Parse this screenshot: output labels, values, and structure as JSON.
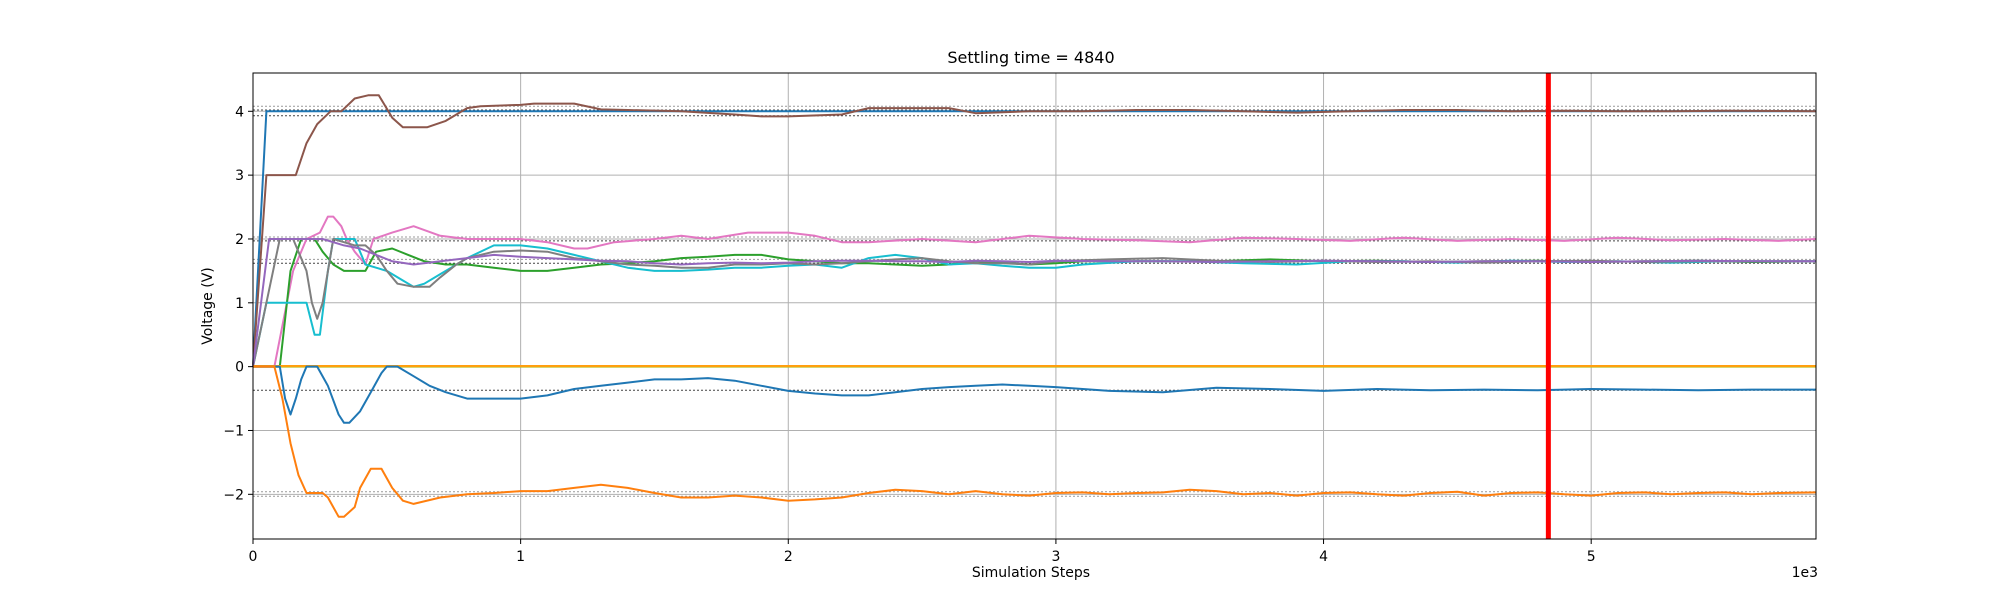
{
  "chart_data": {
    "type": "line",
    "title": "Settling time = 4840",
    "xlabel": "Simulation Steps",
    "ylabel": "Voltage (V)",
    "x_offset_label": "1e3",
    "xlim": [
      0,
      5840
    ],
    "ylim": [
      -2.7,
      4.6
    ],
    "grid": true,
    "legend": "none",
    "x_ticks": [
      {
        "value": 0,
        "label": "0"
      },
      {
        "value": 1000,
        "label": "1"
      },
      {
        "value": 2000,
        "label": "2"
      },
      {
        "value": 3000,
        "label": "3"
      },
      {
        "value": 4000,
        "label": "4"
      },
      {
        "value": 5000,
        "label": "5"
      }
    ],
    "y_ticks": [
      {
        "value": -2,
        "label": "−2"
      },
      {
        "value": -1,
        "label": "−1"
      },
      {
        "value": 0,
        "label": "0"
      },
      {
        "value": 1,
        "label": "1"
      },
      {
        "value": 2,
        "label": "2"
      },
      {
        "value": 3,
        "label": "3"
      },
      {
        "value": 4,
        "label": "4"
      }
    ],
    "settling_marker": {
      "x": 4840,
      "color": "#ff0000"
    },
    "reference_lines": [
      {
        "y": 4.08,
        "color": "#999999"
      },
      {
        "y": 4.02,
        "color": "#444444"
      },
      {
        "y": 3.93,
        "color": "#444444"
      },
      {
        "y": 2.03,
        "color": "#999999"
      },
      {
        "y": 1.97,
        "color": "#444444"
      },
      {
        "y": 1.68,
        "color": "#999999"
      },
      {
        "y": 1.62,
        "color": "#444444"
      },
      {
        "y": -0.37,
        "color": "#444444"
      },
      {
        "y": -1.96,
        "color": "#999999"
      },
      {
        "y": -2.03,
        "color": "#999999"
      }
    ],
    "series": [
      {
        "color": "#1f77b4",
        "x": [
          0,
          50,
          60,
          5840
        ],
        "y": [
          0,
          4.0,
          4.0,
          4.0
        ]
      },
      {
        "color": "#8c564b",
        "x": [
          0,
          50,
          160,
          200,
          240,
          290,
          330,
          380,
          430,
          470,
          520,
          560,
          650,
          720,
          800,
          850,
          1000,
          1050,
          1200,
          1300,
          1400,
          1600,
          1800,
          1900,
          2000,
          2200,
          2300,
          2400,
          2600,
          2700,
          2900,
          3100,
          3300,
          3500,
          3700,
          3900,
          4100,
          4300,
          4500,
          4700,
          4900,
          5100,
          5300,
          5500,
          5840
        ],
        "y": [
          0,
          3.0,
          3.0,
          3.5,
          3.8,
          4.0,
          4.0,
          4.2,
          4.25,
          4.25,
          3.9,
          3.75,
          3.75,
          3.85,
          4.05,
          4.08,
          4.1,
          4.12,
          4.12,
          4.03,
          4.02,
          4.0,
          3.95,
          3.92,
          3.92,
          3.95,
          4.05,
          4.05,
          4.05,
          3.97,
          4.0,
          4.0,
          4.02,
          4.02,
          4.0,
          3.98,
          4.0,
          4.02,
          4.02,
          4.0,
          4.01,
          4.0,
          4.0,
          4.01,
          4.0
        ]
      },
      {
        "color": "#e377c2",
        "x": [
          0,
          80,
          150,
          200,
          250,
          280,
          300,
          330,
          350,
          380,
          420,
          450,
          520,
          600,
          700,
          800,
          900,
          1000,
          1100,
          1200,
          1250,
          1350,
          1500,
          1600,
          1700,
          1850,
          2000,
          2100,
          2200,
          2300,
          2500,
          2700,
          2800,
          2900,
          3100,
          3300,
          3500,
          3700,
          3900,
          4100,
          4300,
          4500,
          4700,
          4900,
          5100,
          5300,
          5500,
          5700,
          5840
        ],
        "y": [
          0,
          0,
          1.5,
          2.0,
          2.1,
          2.35,
          2.35,
          2.2,
          2.0,
          1.8,
          1.6,
          2.0,
          2.1,
          2.2,
          2.05,
          2.0,
          2.0,
          2.0,
          1.95,
          1.85,
          1.85,
          1.95,
          2.0,
          2.05,
          2.0,
          2.1,
          2.1,
          2.05,
          1.95,
          1.95,
          2.0,
          1.95,
          2.0,
          2.05,
          2.0,
          1.98,
          1.95,
          2.02,
          2.0,
          1.97,
          2.02,
          1.97,
          2.0,
          1.97,
          2.02,
          1.98,
          2.0,
          1.97,
          2.0
        ]
      },
      {
        "color": "#2ca02c",
        "x": [
          0,
          100,
          140,
          180,
          230,
          260,
          300,
          340,
          380,
          420,
          460,
          520,
          580,
          640,
          720,
          800,
          900,
          1000,
          1100,
          1200,
          1300,
          1400,
          1500,
          1600,
          1700,
          1800,
          1900,
          2000,
          2100,
          2200,
          2300,
          2400,
          2500,
          2600,
          2700,
          2800,
          2900,
          3000,
          3100,
          3200,
          3400,
          3600,
          3800,
          4000,
          4200,
          4400,
          4600,
          4800,
          5000,
          5200,
          5400,
          5600,
          5840
        ],
        "y": [
          0,
          0,
          1.5,
          2.0,
          2.0,
          1.8,
          1.6,
          1.5,
          1.5,
          1.5,
          1.8,
          1.85,
          1.75,
          1.65,
          1.6,
          1.6,
          1.55,
          1.5,
          1.5,
          1.55,
          1.6,
          1.62,
          1.65,
          1.7,
          1.72,
          1.75,
          1.75,
          1.68,
          1.65,
          1.62,
          1.62,
          1.6,
          1.58,
          1.6,
          1.65,
          1.63,
          1.6,
          1.62,
          1.65,
          1.65,
          1.65,
          1.65,
          1.68,
          1.65,
          1.66,
          1.64,
          1.65,
          1.66,
          1.64,
          1.65,
          1.66,
          1.64,
          1.65
        ]
      },
      {
        "color": "#17becf",
        "x": [
          0,
          50,
          100,
          200,
          230,
          250,
          280,
          300,
          340,
          380,
          420,
          460,
          500,
          560,
          600,
          640,
          700,
          740,
          800,
          900,
          1000,
          1100,
          1200,
          1300,
          1400,
          1500,
          1600,
          1700,
          1800,
          1900,
          2000,
          2100,
          2200,
          2300,
          2400,
          2500,
          2600,
          2700,
          2800,
          2900,
          3000,
          3100,
          3300,
          3500,
          3700,
          3900,
          4100,
          4300,
          4500,
          4700,
          4900,
          5100,
          5300,
          5500,
          5840
        ],
        "y": [
          0,
          1.0,
          1.0,
          1.0,
          0.5,
          0.5,
          1.5,
          2.0,
          2.0,
          2.0,
          1.6,
          1.55,
          1.5,
          1.35,
          1.25,
          1.3,
          1.45,
          1.55,
          1.7,
          1.9,
          1.9,
          1.85,
          1.75,
          1.65,
          1.55,
          1.5,
          1.5,
          1.52,
          1.55,
          1.55,
          1.58,
          1.6,
          1.55,
          1.7,
          1.75,
          1.7,
          1.6,
          1.62,
          1.58,
          1.55,
          1.55,
          1.6,
          1.65,
          1.65,
          1.62,
          1.6,
          1.65,
          1.65,
          1.63,
          1.66,
          1.64,
          1.65,
          1.63,
          1.65,
          1.65
        ]
      },
      {
        "color": "#7f7f7f",
        "x": [
          0,
          50,
          100,
          150,
          200,
          220,
          240,
          260,
          300,
          340,
          380,
          420,
          460,
          500,
          540,
          600,
          660,
          700,
          760,
          800,
          900,
          1000,
          1100,
          1200,
          1300,
          1400,
          1500,
          1600,
          1700,
          1800,
          1900,
          2000,
          2100,
          2200,
          2300,
          2400,
          2500,
          2600,
          2700,
          2800,
          2900,
          3000,
          3200,
          3400,
          3600,
          3800,
          4000,
          4200,
          4400,
          4600,
          4800,
          5000,
          5200,
          5400,
          5840
        ],
        "y": [
          0,
          1.0,
          2.0,
          2.0,
          1.5,
          1.0,
          0.75,
          1.0,
          2.0,
          1.95,
          1.9,
          1.9,
          1.75,
          1.5,
          1.3,
          1.25,
          1.25,
          1.4,
          1.6,
          1.7,
          1.8,
          1.82,
          1.8,
          1.7,
          1.65,
          1.6,
          1.58,
          1.55,
          1.55,
          1.6,
          1.6,
          1.62,
          1.6,
          1.62,
          1.65,
          1.68,
          1.7,
          1.65,
          1.62,
          1.62,
          1.6,
          1.65,
          1.68,
          1.7,
          1.66,
          1.64,
          1.66,
          1.64,
          1.65,
          1.63,
          1.65,
          1.66,
          1.64,
          1.65,
          1.65
        ]
      },
      {
        "color": "#9467bd",
        "x": [
          0,
          60,
          120,
          200,
          260,
          300,
          340,
          400,
          460,
          520,
          600,
          700,
          800,
          900,
          1000,
          1100,
          1200,
          1300,
          1400,
          1500,
          1600,
          1700,
          1800,
          1900,
          2000,
          2100,
          2200,
          2300,
          2400,
          2500,
          2600,
          2700,
          2800,
          2900,
          3000,
          3200,
          3400,
          3600,
          3800,
          4000,
          4200,
          4400,
          4600,
          4800,
          5000,
          5200,
          5400,
          5600,
          5840
        ],
        "y": [
          0,
          2.0,
          2.0,
          2.0,
          2.0,
          1.95,
          1.9,
          1.85,
          1.75,
          1.65,
          1.6,
          1.65,
          1.7,
          1.75,
          1.72,
          1.7,
          1.68,
          1.66,
          1.65,
          1.62,
          1.6,
          1.62,
          1.63,
          1.62,
          1.63,
          1.65,
          1.66,
          1.66,
          1.65,
          1.65,
          1.64,
          1.66,
          1.65,
          1.64,
          1.66,
          1.65,
          1.65,
          1.64,
          1.65,
          1.66,
          1.65,
          1.64,
          1.65,
          1.65,
          1.64,
          1.65,
          1.66,
          1.65,
          1.65
        ]
      },
      {
        "color": "#bcbd22",
        "x": [
          0,
          5840
        ],
        "y": [
          0,
          0
        ]
      },
      {
        "color": "#ff9f0e",
        "x": [
          0,
          5840
        ],
        "y": [
          0.01,
          0.01
        ]
      },
      {
        "color": "#1f77b4",
        "x": [
          0,
          50,
          100,
          120,
          140,
          160,
          180,
          200,
          240,
          280,
          320,
          340,
          360,
          400,
          440,
          480,
          500,
          540,
          600,
          660,
          720,
          800,
          900,
          1000,
          1100,
          1200,
          1300,
          1400,
          1500,
          1600,
          1700,
          1800,
          1900,
          2000,
          2100,
          2200,
          2300,
          2400,
          2500,
          2600,
          2700,
          2800,
          2900,
          3000,
          3100,
          3200,
          3400,
          3600,
          3800,
          4000,
          4200,
          4400,
          4600,
          4800,
          5000,
          5200,
          5400,
          5600,
          5840
        ],
        "y": [
          0,
          0,
          0,
          -0.5,
          -0.75,
          -0.5,
          -0.2,
          0,
          0,
          -0.3,
          -0.75,
          -0.88,
          -0.88,
          -0.7,
          -0.4,
          -0.1,
          0,
          0,
          -0.15,
          -0.3,
          -0.4,
          -0.5,
          -0.5,
          -0.5,
          -0.45,
          -0.35,
          -0.3,
          -0.25,
          -0.2,
          -0.2,
          -0.18,
          -0.22,
          -0.3,
          -0.38,
          -0.42,
          -0.45,
          -0.45,
          -0.4,
          -0.35,
          -0.32,
          -0.3,
          -0.28,
          -0.3,
          -0.32,
          -0.35,
          -0.38,
          -0.4,
          -0.33,
          -0.35,
          -0.38,
          -0.35,
          -0.37,
          -0.36,
          -0.37,
          -0.35,
          -0.36,
          -0.37,
          -0.36,
          -0.36
        ]
      },
      {
        "color": "#ff7f0e",
        "x": [
          0,
          80,
          110,
          140,
          170,
          200,
          260,
          280,
          320,
          340,
          380,
          400,
          440,
          480,
          520,
          560,
          600,
          700,
          800,
          900,
          1000,
          1100,
          1200,
          1300,
          1400,
          1500,
          1600,
          1700,
          1800,
          1900,
          2000,
          2100,
          2200,
          2300,
          2400,
          2500,
          2600,
          2700,
          2800,
          2900,
          3000,
          3100,
          3200,
          3300,
          3400,
          3500,
          3600,
          3700,
          3800,
          3900,
          4000,
          4100,
          4200,
          4300,
          4400,
          4500,
          4600,
          4700,
          4800,
          4900,
          5000,
          5100,
          5200,
          5300,
          5400,
          5500,
          5600,
          5700,
          5840
        ],
        "y": [
          0,
          0,
          -0.5,
          -1.2,
          -1.7,
          -1.98,
          -1.98,
          -2.05,
          -2.35,
          -2.35,
          -2.2,
          -1.9,
          -1.6,
          -1.6,
          -1.9,
          -2.1,
          -2.15,
          -2.05,
          -2.0,
          -1.98,
          -1.95,
          -1.95,
          -1.9,
          -1.85,
          -1.9,
          -1.98,
          -2.05,
          -2.05,
          -2.02,
          -2.05,
          -2.1,
          -2.08,
          -2.05,
          -1.98,
          -1.93,
          -1.95,
          -2.0,
          -1.95,
          -2.0,
          -2.02,
          -1.98,
          -1.97,
          -2.0,
          -1.98,
          -1.97,
          -1.93,
          -1.95,
          -2.0,
          -1.98,
          -2.02,
          -1.98,
          -1.97,
          -2.0,
          -2.02,
          -1.98,
          -1.96,
          -2.02,
          -1.98,
          -1.97,
          -2.0,
          -2.02,
          -1.98,
          -1.97,
          -2.0,
          -1.98,
          -1.97,
          -2.0,
          -1.98,
          -1.97
        ]
      }
    ]
  }
}
